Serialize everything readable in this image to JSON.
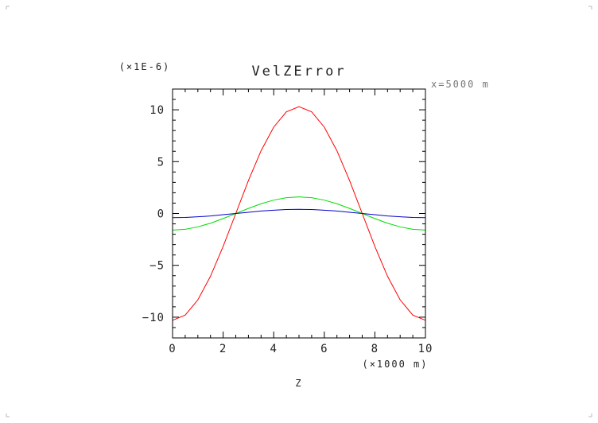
{
  "chart_data": {
    "type": "line",
    "title": "VelZError",
    "y_multiplier": "(×1E-6)",
    "annotation": "x=5000 m",
    "xlabel": "Z",
    "x_unit": "(×1000 m)",
    "xlim": [
      0,
      10
    ],
    "ylim": [
      -12,
      12
    ],
    "x_ticks": [
      0,
      2,
      4,
      6,
      8,
      10
    ],
    "y_ticks": [
      10,
      5,
      0,
      -5,
      -10
    ],
    "x_tick_labels": [
      "0",
      "2",
      "4",
      "6",
      "8",
      "10"
    ],
    "y_tick_labels": [
      "10",
      "5",
      "0",
      "−5",
      "−10"
    ],
    "grid": false,
    "x": [
      0,
      0.5,
      1,
      1.5,
      2,
      2.5,
      3,
      3.5,
      4,
      4.5,
      5,
      5.5,
      6,
      6.5,
      7,
      7.5,
      8,
      8.5,
      9,
      9.5,
      10
    ],
    "series": [
      {
        "color": "#ff0000",
        "values": [
          -10.3,
          -9.8,
          -8.33,
          -6.05,
          -3.18,
          0.0,
          3.18,
          6.05,
          8.33,
          9.8,
          10.3,
          9.8,
          8.33,
          6.05,
          3.18,
          0.0,
          -3.18,
          -6.05,
          -8.33,
          -9.8,
          -10.3
        ]
      },
      {
        "color": "#00dd00",
        "values": [
          -1.6,
          -1.52,
          -1.29,
          -0.94,
          -0.49,
          0.0,
          0.49,
          0.94,
          1.29,
          1.52,
          1.6,
          1.52,
          1.29,
          0.94,
          0.49,
          0.0,
          -0.49,
          -0.94,
          -1.29,
          -1.52,
          -1.6
        ]
      },
      {
        "color": "#0000cc",
        "values": [
          -0.4,
          -0.38,
          -0.32,
          -0.24,
          -0.12,
          0.0,
          0.12,
          0.24,
          0.32,
          0.38,
          0.4,
          0.38,
          0.32,
          0.24,
          0.12,
          0.0,
          -0.12,
          -0.24,
          -0.32,
          -0.38,
          -0.4
        ]
      }
    ]
  }
}
